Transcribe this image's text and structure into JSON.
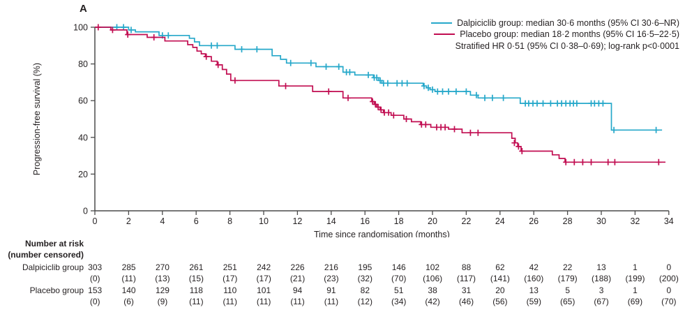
{
  "panel_label": "A",
  "colors": {
    "dalpiciclib": "#26a8ca",
    "placebo": "#c10d51",
    "axis": "#4a4a4a",
    "text": "#231f20"
  },
  "legend": {
    "items": [
      {
        "label": "Dalpiciclib group: median 30·6 months (95% CI 30·6–NR)",
        "color": "#26a8ca"
      },
      {
        "label": "Placebo group: median 18·2 months (95% CI 16·5–22·5)",
        "color": "#c10d51"
      }
    ],
    "note": "Stratified HR 0·51 (95% CI 0·38–0·69); log-rank p<0·0001"
  },
  "chart_data": {
    "type": "line",
    "subtype": "kaplan-meier-step",
    "title": "",
    "xlabel": "Time since randomisation (months)",
    "ylabel": "Progression-free survival (%)",
    "xlim": [
      0,
      34
    ],
    "ylim": [
      0,
      100
    ],
    "xticks": [
      0,
      2,
      4,
      6,
      8,
      10,
      12,
      14,
      16,
      18,
      20,
      22,
      24,
      26,
      28,
      30,
      32,
      34
    ],
    "yticks": [
      0,
      20,
      40,
      60,
      80,
      100
    ],
    "grid": false,
    "legend_position": "top-right",
    "series": [
      {
        "name": "Dalpiciclib group",
        "color": "#26a8ca",
        "steps": [
          [
            0,
            100
          ],
          [
            2.0,
            98.5
          ],
          [
            2.4,
            97.5
          ],
          [
            3.8,
            95.5
          ],
          [
            5.6,
            94
          ],
          [
            5.9,
            92
          ],
          [
            6.2,
            90
          ],
          [
            8.3,
            88
          ],
          [
            10.5,
            84.5
          ],
          [
            11.0,
            82.5
          ],
          [
            11.35,
            80.5
          ],
          [
            13.1,
            78.5
          ],
          [
            14.7,
            75.5
          ],
          [
            15.4,
            74
          ],
          [
            16.5,
            72.5
          ],
          [
            16.8,
            71
          ],
          [
            17.0,
            69.5
          ],
          [
            19.45,
            68
          ],
          [
            19.65,
            67
          ],
          [
            19.85,
            66
          ],
          [
            20.15,
            65
          ],
          [
            22.25,
            63
          ],
          [
            22.7,
            61.5
          ],
          [
            25.2,
            58.5
          ],
          [
            30.6,
            44
          ],
          [
            33.6,
            44
          ]
        ],
        "censor_marks": [
          [
            1.3,
            100
          ],
          [
            1.7,
            100
          ],
          [
            2.15,
            98.5
          ],
          [
            4.0,
            95.5
          ],
          [
            4.35,
            95.5
          ],
          [
            6.9,
            90
          ],
          [
            7.25,
            90
          ],
          [
            8.7,
            88
          ],
          [
            9.6,
            88
          ],
          [
            11.6,
            80.5
          ],
          [
            12.8,
            80.5
          ],
          [
            13.7,
            78.5
          ],
          [
            14.45,
            78.5
          ],
          [
            14.9,
            75.5
          ],
          [
            15.1,
            75.5
          ],
          [
            16.2,
            74
          ],
          [
            16.55,
            72.5
          ],
          [
            16.7,
            72.5
          ],
          [
            16.9,
            71
          ],
          [
            17.1,
            69.5
          ],
          [
            17.35,
            69.5
          ],
          [
            17.9,
            69.5
          ],
          [
            18.2,
            69.5
          ],
          [
            18.5,
            69.5
          ],
          [
            19.5,
            68
          ],
          [
            19.75,
            67
          ],
          [
            20.0,
            66
          ],
          [
            20.3,
            65
          ],
          [
            20.6,
            65
          ],
          [
            20.95,
            65
          ],
          [
            21.4,
            65
          ],
          [
            22.0,
            65
          ],
          [
            22.6,
            63
          ],
          [
            23.1,
            61.5
          ],
          [
            23.55,
            61.5
          ],
          [
            24.2,
            61.5
          ],
          [
            25.5,
            58.5
          ],
          [
            25.7,
            58.5
          ],
          [
            25.95,
            58.5
          ],
          [
            26.2,
            58.5
          ],
          [
            26.55,
            58.5
          ],
          [
            27.0,
            58.5
          ],
          [
            27.4,
            58.5
          ],
          [
            27.65,
            58.5
          ],
          [
            27.9,
            58.5
          ],
          [
            28.15,
            58.5
          ],
          [
            28.35,
            58.5
          ],
          [
            28.55,
            58.5
          ],
          [
            29.4,
            58.5
          ],
          [
            29.6,
            58.5
          ],
          [
            29.85,
            58.5
          ],
          [
            30.1,
            58.5
          ],
          [
            30.75,
            44
          ],
          [
            33.25,
            44
          ]
        ]
      },
      {
        "name": "Placebo group",
        "color": "#c10d51",
        "steps": [
          [
            0,
            100
          ],
          [
            0.95,
            98.5
          ],
          [
            1.9,
            96
          ],
          [
            3.1,
            94.5
          ],
          [
            4.15,
            92.5
          ],
          [
            5.5,
            90.5
          ],
          [
            5.8,
            89
          ],
          [
            6.05,
            87
          ],
          [
            6.3,
            85.5
          ],
          [
            6.55,
            84
          ],
          [
            6.9,
            81.5
          ],
          [
            7.25,
            79.5
          ],
          [
            7.55,
            77
          ],
          [
            7.8,
            74.5
          ],
          [
            8.05,
            71
          ],
          [
            10.9,
            68
          ],
          [
            12.9,
            65
          ],
          [
            14.7,
            61.5
          ],
          [
            16.4,
            59.5
          ],
          [
            16.55,
            58
          ],
          [
            16.7,
            56.5
          ],
          [
            16.9,
            55
          ],
          [
            17.1,
            53.5
          ],
          [
            17.55,
            52
          ],
          [
            18.3,
            50
          ],
          [
            18.75,
            48.5
          ],
          [
            19.3,
            47
          ],
          [
            19.9,
            45.5
          ],
          [
            20.95,
            44.5
          ],
          [
            21.75,
            42.5
          ],
          [
            24.7,
            39.5
          ],
          [
            24.9,
            37
          ],
          [
            25.05,
            35
          ],
          [
            25.25,
            32.5
          ],
          [
            27.1,
            30.5
          ],
          [
            27.5,
            28.5
          ],
          [
            27.85,
            26.5
          ],
          [
            33.8,
            26.5
          ]
        ],
        "censor_marks": [
          [
            0.2,
            100
          ],
          [
            1.05,
            98.5
          ],
          [
            1.95,
            96
          ],
          [
            3.5,
            94.5
          ],
          [
            6.6,
            84
          ],
          [
            7.3,
            79.5
          ],
          [
            8.3,
            71
          ],
          [
            11.3,
            68
          ],
          [
            13.85,
            65
          ],
          [
            15.0,
            61.5
          ],
          [
            16.45,
            59.5
          ],
          [
            16.62,
            58
          ],
          [
            16.78,
            56.5
          ],
          [
            16.95,
            55
          ],
          [
            17.15,
            53.5
          ],
          [
            17.4,
            53.5
          ],
          [
            17.7,
            52
          ],
          [
            18.45,
            50
          ],
          [
            19.35,
            47
          ],
          [
            19.6,
            47
          ],
          [
            20.25,
            45.5
          ],
          [
            20.5,
            45.5
          ],
          [
            20.75,
            45.5
          ],
          [
            21.3,
            44.5
          ],
          [
            22.25,
            42.5
          ],
          [
            22.7,
            42.5
          ],
          [
            24.85,
            37
          ],
          [
            25.1,
            35
          ],
          [
            25.3,
            32.5
          ],
          [
            27.9,
            26.5
          ],
          [
            28.4,
            26.5
          ],
          [
            28.9,
            26.5
          ],
          [
            29.4,
            26.5
          ],
          [
            30.4,
            26.5
          ],
          [
            30.8,
            26.5
          ],
          [
            33.4,
            26.5
          ]
        ]
      }
    ]
  },
  "risk_table": {
    "header_line1": "Number at risk",
    "header_line2": "(number censored)",
    "months": [
      0,
      2,
      4,
      6,
      8,
      10,
      12,
      14,
      16,
      18,
      20,
      22,
      24,
      26,
      28,
      30,
      32,
      34
    ],
    "rows": [
      {
        "label": "Dalpiciclib group",
        "at_risk": [
          "303",
          "285",
          "270",
          "261",
          "251",
          "242",
          "226",
          "216",
          "195",
          "146",
          "102",
          "88",
          "62",
          "42",
          "22",
          "13",
          "1",
          "0"
        ],
        "censored": [
          "(0)",
          "(11)",
          "(13)",
          "(15)",
          "(17)",
          "(17)",
          "(21)",
          "(23)",
          "(32)",
          "(70)",
          "(106)",
          "(117)",
          "(141)",
          "(160)",
          "(179)",
          "(188)",
          "(199)",
          "(200)"
        ]
      },
      {
        "label": "Placebo group",
        "at_risk": [
          "153",
          "140",
          "129",
          "118",
          "110",
          "101",
          "94",
          "91",
          "82",
          "51",
          "38",
          "31",
          "20",
          "13",
          "5",
          "3",
          "1",
          "0"
        ],
        "censored": [
          "(0)",
          "(6)",
          "(9)",
          "(11)",
          "(11)",
          "(11)",
          "(11)",
          "(11)",
          "(12)",
          "(34)",
          "(42)",
          "(46)",
          "(56)",
          "(59)",
          "(65)",
          "(67)",
          "(69)",
          "(70)"
        ]
      }
    ]
  }
}
